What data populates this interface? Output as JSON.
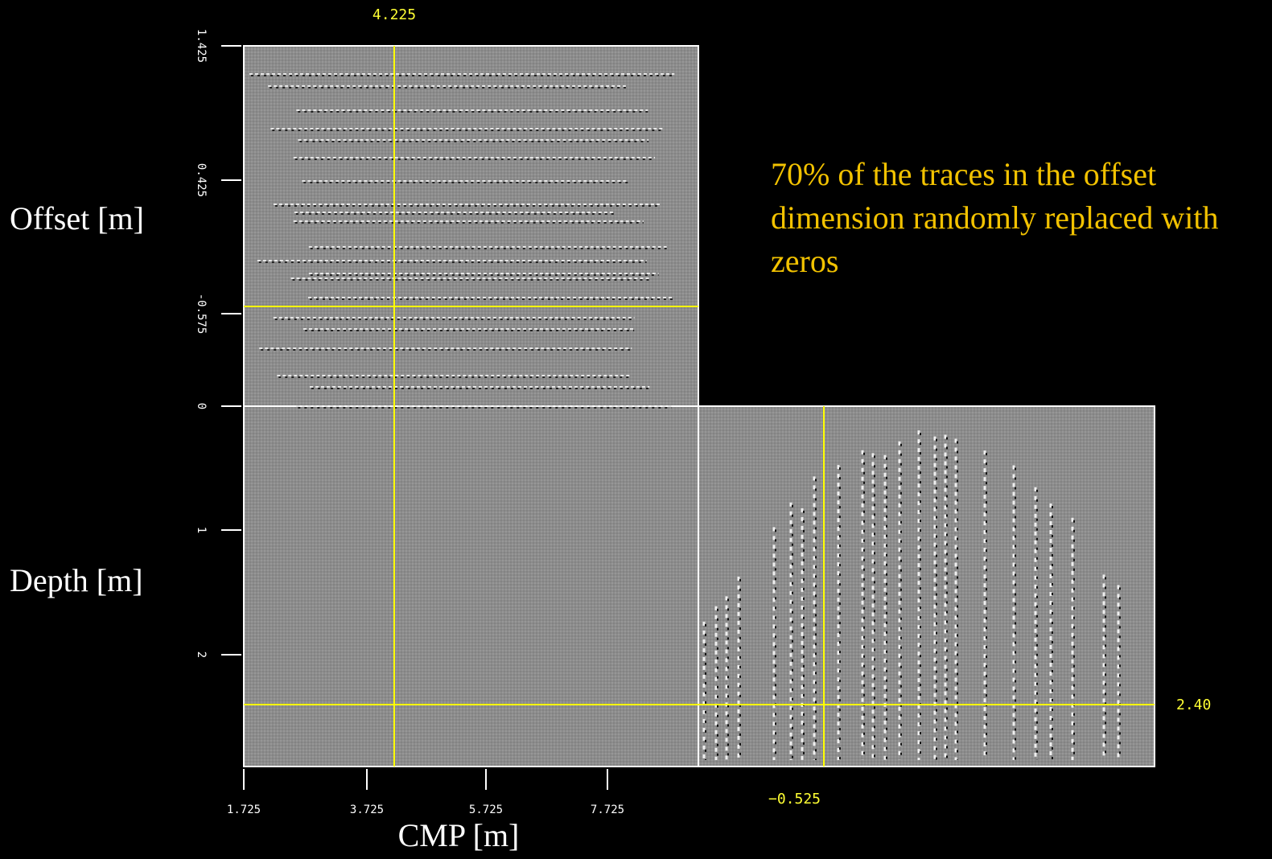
{
  "top_value": "4.225",
  "right_value": "2.40",
  "bottom_value": "−0.525",
  "axis_labels": {
    "offset": "Offset [m]",
    "depth": "Depth [m]",
    "cmp": "CMP [m]"
  },
  "offset_ticks": [
    "1.425",
    "0.425",
    "-0.575",
    "0"
  ],
  "depth_ticks": [
    "1",
    "2"
  ],
  "cmp_ticks": [
    "1.725",
    "3.725",
    "5.725",
    "7.725"
  ],
  "annotation": "70% of the traces in the offset dimension randomly replaced with zeros"
}
